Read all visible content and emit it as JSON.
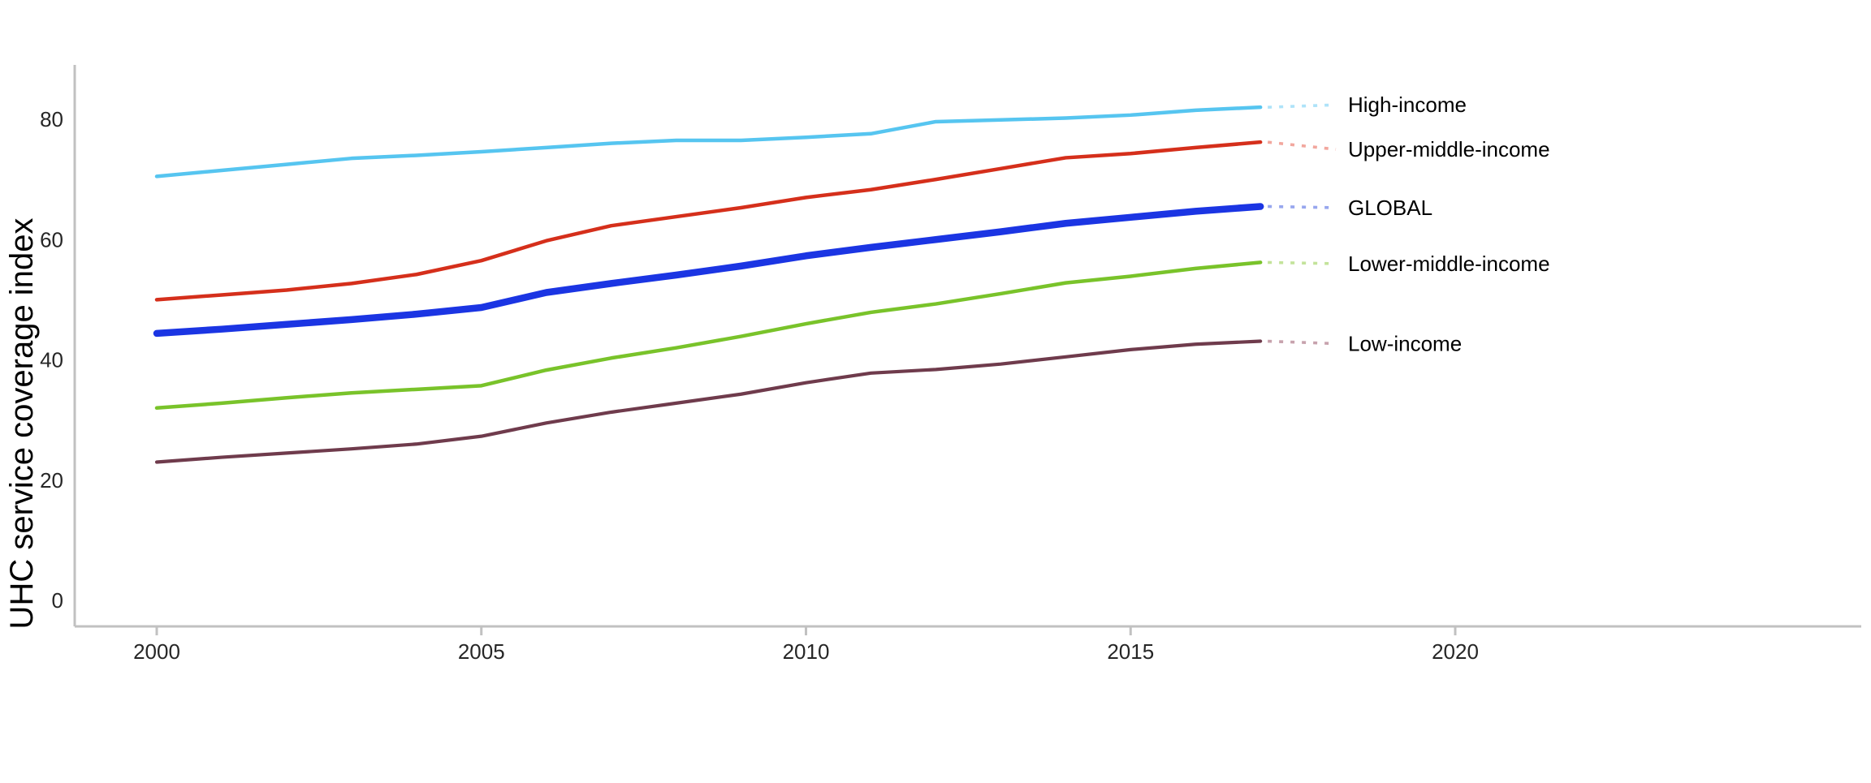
{
  "figure": {
    "background_color": "#ffffff",
    "axis_color": "#c1c1c1",
    "tick_text_color": "#262626",
    "label_text_color": "#000000"
  },
  "chart_data": {
    "type": "line",
    "title": "",
    "xlabel": "",
    "ylabel": "UHC service coverage index",
    "xlim": [
      2000,
      2020
    ],
    "ylim": [
      0,
      80
    ],
    "x_ticks": [
      2000,
      2005,
      2010,
      2015,
      2020
    ],
    "y_ticks": [
      0,
      20,
      40,
      60,
      80
    ],
    "grid": false,
    "legend_position": "right-end-labels",
    "x": [
      2000,
      2001,
      2002,
      2003,
      2004,
      2005,
      2006,
      2007,
      2008,
      2009,
      2010,
      2011,
      2012,
      2013,
      2014,
      2015,
      2016,
      2017
    ],
    "series": [
      {
        "name": "High-income",
        "color": "#56c5f0",
        "connector_color": "#aee3f9",
        "stroke_width": 4.5,
        "label_value": 82.4,
        "values": [
          70.5,
          71.5,
          72.5,
          73.5,
          74.0,
          74.6,
          75.3,
          76.0,
          76.5,
          76.5,
          77.0,
          77.6,
          79.6,
          79.9,
          80.2,
          80.7,
          81.5,
          82.0
        ]
      },
      {
        "name": "Upper-middle-income",
        "color": "#d52f1b",
        "connector_color": "#f2a79e",
        "stroke_width": 4.5,
        "label_value": 75.0,
        "values": [
          50.0,
          50.8,
          51.6,
          52.7,
          54.2,
          56.5,
          59.8,
          62.3,
          63.8,
          65.3,
          67.0,
          68.3,
          70.0,
          71.8,
          73.6,
          74.3,
          75.3,
          76.2
        ]
      },
      {
        "name": "GLOBAL",
        "color": "#1b35e3",
        "connector_color": "#97a6ee",
        "stroke_width": 8.5,
        "label_value": 65.3,
        "values": [
          44.4,
          45.1,
          45.9,
          46.7,
          47.6,
          48.7,
          51.2,
          52.7,
          54.1,
          55.6,
          57.3,
          58.7,
          60.0,
          61.3,
          62.7,
          63.7,
          64.7,
          65.5
        ]
      },
      {
        "name": "Lower-middle-income",
        "color": "#79c32a",
        "connector_color": "#c3e39a",
        "stroke_width": 4.5,
        "label_value": 56.0,
        "values": [
          32.0,
          32.8,
          33.7,
          34.5,
          35.1,
          35.7,
          38.3,
          40.3,
          42.0,
          43.9,
          46.0,
          47.9,
          49.3,
          51.0,
          52.8,
          53.9,
          55.2,
          56.2
        ]
      },
      {
        "name": "Low-income",
        "color": "#6f3b4c",
        "connector_color": "#c7a2ad",
        "stroke_width": 4.2,
        "label_value": 42.7,
        "values": [
          23.0,
          23.8,
          24.5,
          25.2,
          26.0,
          27.3,
          29.5,
          31.3,
          32.8,
          34.3,
          36.2,
          37.8,
          38.4,
          39.3,
          40.5,
          41.7,
          42.6,
          43.1
        ]
      }
    ]
  }
}
